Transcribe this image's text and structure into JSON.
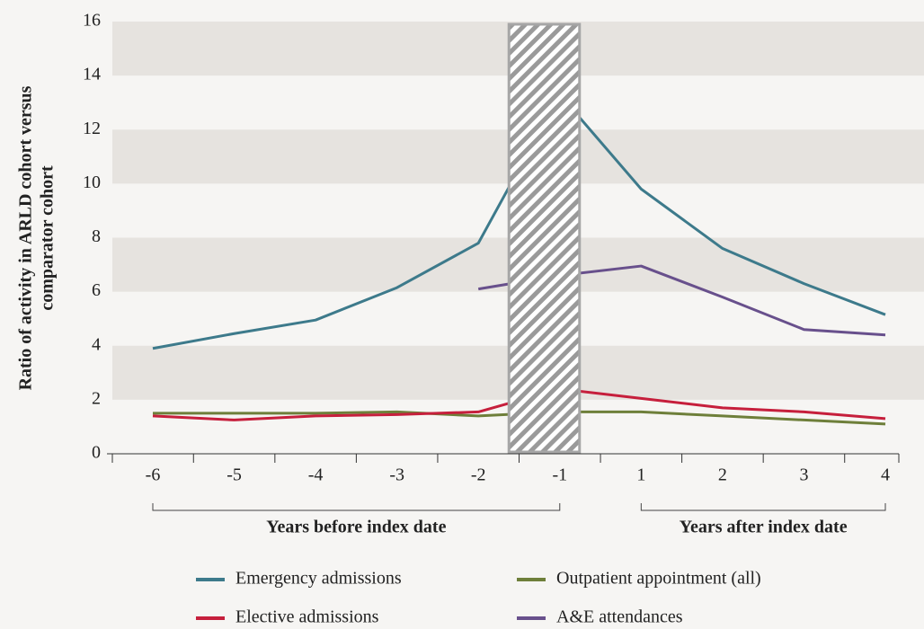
{
  "chart_data": {
    "type": "line",
    "ylabel": [
      "Ratio of activity in ARLD cohort versus",
      "comparator cohort"
    ],
    "categories": [
      "-6",
      "-5",
      "-4",
      "-3",
      "-2",
      "-1",
      "1",
      "2",
      "3",
      "4"
    ],
    "series": [
      {
        "name": "Emergency admissions",
        "color": "#3d7a8b",
        "values": [
          3.9,
          4.45,
          4.95,
          6.15,
          7.8,
          13.3,
          9.8,
          7.6,
          6.3,
          5.15
        ]
      },
      {
        "name": "Outpatient appointment (all)",
        "color": "#6e7f3a",
        "values": [
          1.5,
          1.5,
          1.5,
          1.55,
          1.4,
          1.55,
          1.55,
          1.4,
          1.25,
          1.1
        ]
      },
      {
        "name": "Elective admissions",
        "color": "#c61f3c",
        "values": [
          1.4,
          1.25,
          1.4,
          1.45,
          1.55,
          2.4,
          2.05,
          1.7,
          1.55,
          1.3
        ]
      },
      {
        "name": "A&E attendances",
        "color": "#68508c",
        "values": [
          null,
          null,
          null,
          null,
          6.1,
          6.6,
          6.95,
          5.8,
          4.6,
          4.4
        ]
      }
    ],
    "ylim": [
      0,
      16
    ],
    "yticks": [
      0,
      2,
      4,
      6,
      8,
      10,
      12,
      14,
      16
    ],
    "banded_grid": true,
    "brackets": [
      {
        "label": "Years before index date",
        "from": 0,
        "to": 5
      },
      {
        "label": "Years after index date",
        "from": 6,
        "to": 9
      }
    ]
  }
}
